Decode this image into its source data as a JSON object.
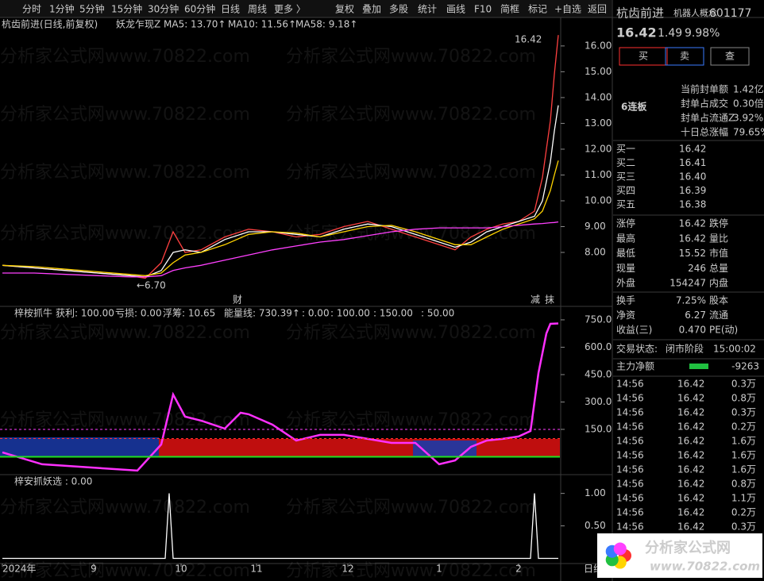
{
  "toolbar": {
    "left": [
      "分时",
      "1分钟",
      "5分钟",
      "15分钟",
      "30分钟",
      "60分钟",
      "日线",
      "周线",
      "更多 〉"
    ],
    "right": [
      "复权",
      "叠加",
      "多股",
      "统计",
      "画线",
      "F10",
      "简框",
      "标记",
      "+自选",
      "返回"
    ]
  },
  "watermark": "分析家公式网www.70822.com",
  "chart_data": [
    {
      "type": "line",
      "title": "杭齿前进(日线,前复权)",
      "subtitle": "妖龙乍现Z",
      "legend": [
        {
          "label": "MA5: 13.70↑",
          "color": "#ffffff"
        },
        {
          "label": "MA10: 11.56↑",
          "color": "#ffd400"
        },
        {
          "label": "MA58: 9.18↑",
          "color": "#ff40ff"
        }
      ],
      "x": [
        0,
        8,
        16,
        24,
        32,
        36,
        40,
        43,
        46,
        50,
        56,
        62,
        68,
        74,
        80,
        86,
        92,
        98,
        104,
        110,
        114,
        118,
        122,
        126,
        130,
        134,
        136,
        138,
        139,
        140
      ],
      "series": [
        {
          "name": "收盘",
          "color": "#ff4040",
          "values": [
            7.5,
            7.4,
            7.3,
            7.2,
            7.1,
            7.0,
            7.6,
            8.8,
            8.0,
            8.1,
            8.6,
            8.9,
            8.8,
            8.6,
            8.7,
            9.0,
            9.2,
            8.9,
            8.6,
            8.3,
            8.1,
            8.6,
            8.9,
            9.1,
            9.2,
            9.6,
            10.9,
            13.1,
            14.9,
            16.42
          ]
        },
        {
          "name": "MA5",
          "color": "#ffffff",
          "values": [
            7.5,
            7.4,
            7.3,
            7.2,
            7.1,
            7.05,
            7.3,
            8.0,
            8.1,
            8.0,
            8.5,
            8.8,
            8.8,
            8.7,
            8.6,
            8.9,
            9.1,
            9.0,
            8.7,
            8.4,
            8.2,
            8.4,
            8.8,
            9.0,
            9.2,
            9.4,
            10.0,
            11.5,
            12.7,
            13.7
          ]
        },
        {
          "name": "MA10",
          "color": "#ffd400",
          "values": [
            7.5,
            7.45,
            7.35,
            7.25,
            7.15,
            7.1,
            7.2,
            7.6,
            7.9,
            8.0,
            8.3,
            8.7,
            8.8,
            8.75,
            8.6,
            8.8,
            9.0,
            9.05,
            8.8,
            8.5,
            8.3,
            8.3,
            8.6,
            8.9,
            9.1,
            9.3,
            9.6,
            10.4,
            11.0,
            11.56
          ]
        },
        {
          "name": "MA58",
          "color": "#ff40ff",
          "values": [
            7.2,
            7.2,
            7.15,
            7.1,
            7.05,
            7.05,
            7.1,
            7.3,
            7.4,
            7.5,
            7.7,
            7.9,
            8.1,
            8.25,
            8.4,
            8.5,
            8.65,
            8.8,
            8.9,
            8.95,
            8.95,
            8.95,
            8.95,
            9.0,
            9.05,
            9.1,
            9.12,
            9.15,
            9.16,
            9.18
          ]
        }
      ],
      "annotations": [
        "16.42",
        "←6.70",
        "财",
        "减",
        "抹"
      ],
      "xlim": [
        0,
        141
      ],
      "ylim": [
        5.94,
        16.55
      ],
      "yticks": [
        {
          "value": 8,
          "label": "8.00"
        },
        {
          "value": 9,
          "label": "9.00"
        },
        {
          "value": 10,
          "label": "10.00"
        },
        {
          "value": 11,
          "label": "11.00"
        },
        {
          "value": 12,
          "label": "12.00"
        },
        {
          "value": 13,
          "label": "13.00"
        },
        {
          "value": 14,
          "label": "14.00"
        },
        {
          "value": 15,
          "label": "15.00"
        },
        {
          "value": 16,
          "label": "16.00"
        }
      ]
    },
    {
      "type": "line",
      "title": "梓桉抓牛",
      "legend": [
        {
          "label": "获利: 100.00",
          "color": "#ff3030"
        },
        {
          "label": "亏损: 0.00",
          "color": "#20d020"
        },
        {
          "label": "浮筹: 10.65",
          "color": "#aaaaaa"
        },
        {
          "label": "能量线: 730.39↑",
          "color": "#ff40ff"
        },
        {
          "label": ": 0.00",
          "color": "#20d020"
        },
        {
          "label": ": 100.00",
          "color": "#ff3030"
        },
        {
          "label": ": 150.00",
          "color": "#ff40ff"
        },
        {
          "label": ": 50.00",
          "color": "#ffff40"
        }
      ],
      "x": [
        0,
        10,
        34,
        40,
        43,
        46,
        50,
        56,
        60,
        62,
        68,
        74,
        80,
        86,
        92,
        98,
        104,
        110,
        114,
        118,
        122,
        126,
        130,
        133,
        135,
        137,
        138,
        140
      ],
      "series": [
        {
          "name": "能量线",
          "color": "#ff30ff",
          "values": [
            24,
            -41,
            -76,
            67,
            341,
            220,
            198,
            154,
            241,
            233,
            176,
            89,
            120,
            120,
            98,
            76,
            76,
            -41,
            -20,
            54,
            89,
            98,
            111,
            141,
            459,
            676,
            728,
            730.39
          ]
        }
      ],
      "xlim": [
        0,
        141
      ],
      "ylim": [
        -98,
        815
      ],
      "yticks": [
        {
          "value": 150,
          "label": "150.0"
        },
        {
          "value": 300,
          "label": "300.0"
        },
        {
          "value": 450,
          "label": "450.0"
        },
        {
          "value": 600,
          "label": "600.0"
        },
        {
          "value": 750,
          "label": "750.0"
        }
      ]
    },
    {
      "type": "line",
      "title": "梓安抓妖选 : 0.00",
      "x": [
        0,
        41,
        42,
        43,
        133,
        134,
        135,
        140
      ],
      "series": [
        {
          "name": "梓安抓妖选",
          "color": "#ffffff",
          "values": [
            0,
            0,
            1,
            0,
            0,
            1,
            0,
            0
          ]
        }
      ],
      "xlim": [
        0,
        141
      ],
      "ylim": [
        -0.08,
        1.13
      ],
      "yticks": [
        {
          "value": 0.5,
          "label": "0.50"
        },
        {
          "value": 1,
          "label": "1.00"
        }
      ],
      "xticks": [
        {
          "value": 0,
          "label": "2024年"
        },
        {
          "value": 23,
          "label": "9"
        },
        {
          "value": 45,
          "label": "10"
        },
        {
          "value": 64,
          "label": "11"
        },
        {
          "value": 87,
          "label": "12"
        },
        {
          "value": 110,
          "label": "1"
        },
        {
          "value": 130,
          "label": "2"
        }
      ],
      "period": "日线"
    }
  ],
  "quote": {
    "name": "杭齿前进",
    "concept": "机器人概念",
    "code": "601177",
    "price": "16.42",
    "change": "1.49",
    "pct": "9.98%",
    "buttons": [
      "买",
      "卖",
      "查"
    ],
    "streak": "6连板",
    "seal": [
      [
        "当前封单额",
        "1.42亿"
      ],
      [
        "封单占成交",
        "0.30倍"
      ],
      [
        "封单占流通Z",
        "3.92%"
      ],
      [
        "十日总涨幅",
        "79.65%"
      ]
    ],
    "bids": [
      [
        "买一",
        "16.42"
      ],
      [
        "买二",
        "16.41"
      ],
      [
        "买三",
        "16.40"
      ],
      [
        "买四",
        "16.39"
      ],
      [
        "买五",
        "16.38"
      ]
    ],
    "grid": [
      [
        "涨停",
        "16.42",
        "跌停"
      ],
      [
        "最高",
        "16.42",
        "量比"
      ],
      [
        "最低",
        "15.52",
        "市值"
      ],
      [
        "现量",
        "246",
        "总量"
      ],
      [
        "外盘",
        "154247",
        "内盘"
      ]
    ],
    "finance": [
      [
        "换手",
        "7.25%",
        "股本"
      ],
      [
        "净资",
        "6.27",
        "流通"
      ],
      [
        "收益(三)",
        "0.470",
        "PE(动)"
      ]
    ],
    "status": [
      "交易状态:",
      "闭市阶段",
      "15:00:02"
    ],
    "flow": [
      "主力净额",
      "-9263"
    ],
    "trades": [
      [
        "14:56",
        "16.42",
        "0.3万"
      ],
      [
        "14:56",
        "16.42",
        "0.8万"
      ],
      [
        "14:56",
        "16.42",
        "0.3万"
      ],
      [
        "14:56",
        "16.42",
        "0.2万"
      ],
      [
        "14:56",
        "16.42",
        "1.6万"
      ],
      [
        "14:56",
        "16.42",
        "1.6万"
      ],
      [
        "14:56",
        "16.42",
        "1.6万"
      ],
      [
        "14:56",
        "16.42",
        "0.8万"
      ],
      [
        "14:56",
        "16.42",
        "1.1万"
      ],
      [
        "14:56",
        "16.42",
        "0.2万"
      ],
      [
        "14:56",
        "16.42",
        "0.3万"
      ]
    ]
  },
  "logo": {
    "title": "分析家公式网",
    "url": "www.70822.com"
  }
}
